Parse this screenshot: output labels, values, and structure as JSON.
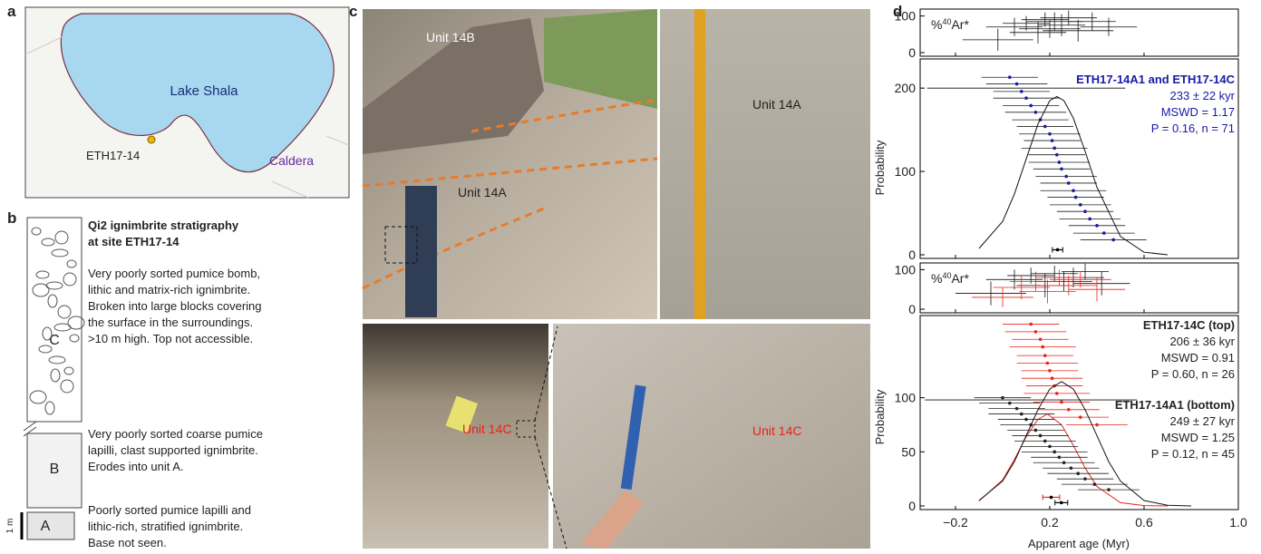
{
  "panel_a": {
    "letter": "a",
    "lake_label": "Lake Shala",
    "site_label": "ETH17-14",
    "caldera_label": "Caldera"
  },
  "panel_b": {
    "letter": "b",
    "title": [
      "Qi2 ignimbrite stratigraphy",
      "at site ETH17-14"
    ],
    "scale_label": "1 m",
    "units": [
      {
        "label": "C",
        "description": [
          "Very poorly sorted pumice bomb,",
          "lithic and matrix-rich ignimbrite.",
          "Broken into large blocks covering",
          "the surface in the surroundings.",
          ">10 m high. Top not accessible."
        ]
      },
      {
        "label": "B",
        "description": [
          "Very poorly sorted coarse pumice",
          "lapilli, clast supported ignimbrite.",
          "Erodes into unit A."
        ]
      },
      {
        "label": "A",
        "description": [
          "Poorly sorted pumice lapilli and",
          "lithic-rich, stratified ignimbrite.",
          "Base not seen."
        ]
      }
    ]
  },
  "panel_c": {
    "letter": "c",
    "labels": [
      "Unit 14B",
      "Unit 14A",
      "Unit 14A",
      "Unit 14C",
      "Unit 14C"
    ]
  },
  "panel_d": {
    "letter": "d",
    "x_label": "Apparent age (Myr)",
    "y_label": "Probability",
    "xlim": [
      -0.35,
      1.0
    ],
    "xticks": [
      {
        "value": -0.2,
        "label": "−0.2"
      },
      0.2,
      0.6,
      {
        "value": 1.0,
        "label": "1.0"
      }
    ],
    "ar_label": {
      "prefix": "%",
      "sup": "40",
      "suffix": "Ar*"
    },
    "ar_plots": [
      {
        "ylim": [
          0,
          119
        ],
        "yticks": [
          0,
          100
        ],
        "series": [
          {
            "color": "#111111",
            "x": [
              -0.02,
              0.05,
              0.1,
              0.15,
              0.18,
              0.2,
              0.22,
              0.25,
              0.28,
              0.32,
              0.38,
              0.45
            ],
            "y": [
              35,
              70,
              80,
              55,
              90,
              65,
              85,
              75,
              95,
              60,
              85,
              70
            ],
            "xerr": [
              0.15,
              0.12,
              0.1,
              0.12,
              0.1,
              0.13,
              0.12,
              0.1,
              0.12,
              0.15,
              0.1,
              0.12
            ],
            "yerr": [
              30,
              25,
              20,
              30,
              20,
              25,
              25,
              30,
              20,
              30,
              25,
              25
            ]
          }
        ]
      },
      {
        "ylim": [
          0,
          117
        ],
        "yticks": [
          0,
          100
        ],
        "series": [
          {
            "color": "#111111",
            "x": [
              -0.05,
              0.05,
              0.12,
              0.18,
              0.22,
              0.26,
              0.3,
              0.35,
              0.42
            ],
            "y": [
              40,
              75,
              85,
              60,
              90,
              70,
              80,
              95,
              65
            ],
            "xerr": [
              0.15,
              0.12,
              0.1,
              0.12,
              0.1,
              0.12,
              0.13,
              0.1,
              0.12
            ],
            "yerr": [
              30,
              25,
              20,
              30,
              20,
              25,
              25,
              20,
              30
            ]
          },
          {
            "color": "#e8231c",
            "x": [
              0.0,
              0.08,
              0.14,
              0.19,
              0.24,
              0.28,
              0.33,
              0.4
            ],
            "y": [
              30,
              55,
              70,
              45,
              80,
              60,
              75,
              50
            ],
            "xerr": [
              0.13,
              0.12,
              0.11,
              0.12,
              0.1,
              0.12,
              0.13,
              0.12
            ],
            "yerr": [
              25,
              30,
              25,
              30,
              20,
              25,
              20,
              30
            ]
          }
        ]
      }
    ],
    "prob_plots": [
      {
        "ylim": [
          0,
          235
        ],
        "yticks": [
          0,
          100,
          200
        ],
        "series": [
          {
            "name": "ETH17-14A1 and ETH17-14C",
            "color": "#1a1aa8",
            "stats": [
              "233 ± 22 kyr",
              "MSWD = 1.17",
              "P = 0.16, n = 71"
            ],
            "x": [
              0.03,
              0.06,
              0.08,
              0.1,
              0.12,
              0.14,
              0.16,
              0.18,
              0.2,
              0.21,
              0.22,
              0.23,
              0.24,
              0.25,
              0.27,
              0.28,
              0.3,
              0.31,
              0.33,
              0.35,
              0.37,
              0.4,
              0.43,
              0.47
            ],
            "y": [
              213,
              205,
              196,
              188,
              179,
              171,
              162,
              154,
              145,
              137,
              128,
              120,
              111,
              103,
              94,
              86,
              77,
              69,
              60,
              52,
              43,
              35,
              26,
              18
            ],
            "xerr": [
              0.12,
              0.13,
              0.12,
              0.14,
              0.12,
              0.13,
              0.12,
              0.12,
              0.13,
              0.12,
              0.14,
              0.12,
              0.13,
              0.12,
              0.13,
              0.12,
              0.14,
              0.12,
              0.13,
              0.12,
              0.13,
              0.12,
              0.13,
              0.14
            ],
            "outlier": {
              "x": 0.1,
              "y": 200,
              "xerr": 0.42
            },
            "curve_color": "#111111",
            "curve_x": [
              -0.1,
              0,
              0.05,
              0.1,
              0.15,
              0.2,
              0.23,
              0.26,
              0.3,
              0.35,
              0.4,
              0.5,
              0.6,
              0.7
            ],
            "curve_y": [
              7.6,
              40,
              73,
              115,
              157,
              185,
              190,
              185,
              164,
              124,
              81,
              22,
              3,
              0
            ],
            "mean": {
              "x": 0.233,
              "xerr": 0.022,
              "y": 6
            }
          }
        ]
      },
      {
        "ylim": [
          0,
          176
        ],
        "yticks": [
          0,
          50,
          100
        ],
        "series": [
          {
            "name": "ETH17-14C (top)",
            "color": "#e8231c",
            "stats": [
              "206 ± 36 kyr",
              "MSWD = 0.91",
              "P = 0.60, n = 26"
            ],
            "x": [
              0.12,
              0.14,
              0.16,
              0.17,
              0.18,
              0.19,
              0.2,
              0.21,
              0.22,
              0.23,
              0.25,
              0.28,
              0.33,
              0.4
            ],
            "y": [
              168,
              161,
              154,
              147,
              139,
              132,
              125,
              118,
              111,
              104,
              96,
              89,
              82,
              75
            ],
            "xerr": [
              0.12,
              0.13,
              0.12,
              0.14,
              0.12,
              0.13,
              0.12,
              0.13,
              0.12,
              0.14,
              0.12,
              0.13,
              0.12,
              0.13
            ],
            "curve_color": "#e8231c",
            "curve_x": [
              -0.1,
              0,
              0.05,
              0.1,
              0.15,
              0.19,
              0.25,
              0.3,
              0.35,
              0.4,
              0.5,
              0.6,
              0.7
            ],
            "curve_y": [
              4.6,
              24,
              43,
              64,
              80,
              85,
              75,
              56,
              35,
              18,
              3,
              0.3,
              0
            ],
            "mean": {
              "x": 0.206,
              "xerr": 0.036,
              "y": 8
            }
          },
          {
            "name": "ETH17-14A1 (bottom)",
            "color": "#222222",
            "stats": [
              "249 ± 27 kyr",
              "MSWD = 1.25",
              "P = 0.12, n = 45"
            ],
            "x": [
              0.0,
              0.03,
              0.06,
              0.08,
              0.1,
              0.12,
              0.14,
              0.16,
              0.18,
              0.2,
              0.22,
              0.24,
              0.26,
              0.29,
              0.32,
              0.35,
              0.39,
              0.45
            ],
            "y": [
              100,
              95,
              90,
              85,
              80,
              75,
              70,
              65,
              60,
              55,
              50,
              45,
              40,
              35,
              30,
              25,
              20,
              15
            ],
            "xerr": [
              0.12,
              0.13,
              0.12,
              0.14,
              0.12,
              0.13,
              0.12,
              0.12,
              0.13,
              0.12,
              0.14,
              0.12,
              0.13,
              0.12,
              0.13,
              0.12,
              0.14,
              0.13
            ],
            "outlier": {
              "x": 0.12,
              "y": 98,
              "xerr": 0.45
            },
            "curve_color": "#111111",
            "curve_x": [
              -0.1,
              0,
              0.05,
              0.1,
              0.15,
              0.2,
              0.25,
              0.3,
              0.35,
              0.4,
              0.45,
              0.5,
              0.6,
              0.7,
              0.8
            ],
            "curve_y": [
              5,
              23,
              41,
              65,
              89,
              108,
              115,
              108,
              89,
              65,
              41,
              23,
              5,
              0.6,
              0
            ],
            "mean": {
              "x": 0.249,
              "xerr": 0.027,
              "y": 3
            }
          }
        ]
      }
    ]
  }
}
